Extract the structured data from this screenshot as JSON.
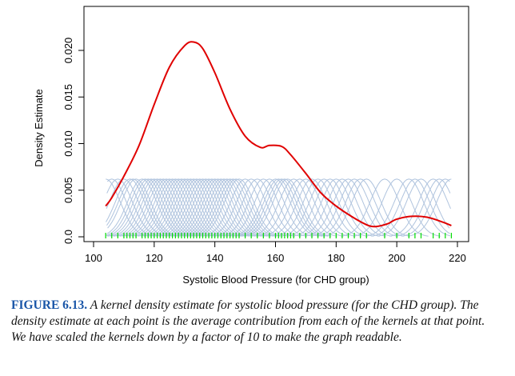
{
  "chart_data": {
    "type": "line",
    "title": "",
    "xlabel": "Systolic Blood Pressure (for CHD group)",
    "ylabel": "Density Estimate",
    "xlim": [
      100,
      220
    ],
    "ylim": [
      0,
      0.0225
    ],
    "x_ticks": [
      "100",
      "120",
      "140",
      "160",
      "180",
      "200",
      "220"
    ],
    "y_ticks": [
      "0.0",
      "0.005",
      "0.010",
      "0.015",
      "0.020"
    ],
    "series": [
      {
        "role": "density estimate",
        "color": "#e00000",
        "x": [
          104,
          106,
          110,
          115,
          120,
          125,
          130,
          133,
          136,
          140,
          145,
          150,
          155,
          158,
          162,
          165,
          170,
          175,
          180,
          185,
          190,
          193,
          197,
          200,
          205,
          210,
          215,
          218
        ],
        "y": [
          0.0033,
          0.0042,
          0.0065,
          0.0098,
          0.0142,
          0.0182,
          0.0205,
          0.0209,
          0.0202,
          0.0176,
          0.0137,
          0.0108,
          0.0096,
          0.0098,
          0.0097,
          0.0088,
          0.0068,
          0.0047,
          0.0033,
          0.0022,
          0.0013,
          0.0011,
          0.0014,
          0.0019,
          0.0022,
          0.0021,
          0.0016,
          0.0012
        ]
      }
    ],
    "kernels": {
      "color": "#b0c4de",
      "peak_height": 0.0062,
      "bandwidth": 4.8,
      "centers": [
        104,
        106,
        108,
        110,
        112,
        113,
        114,
        116,
        117,
        118,
        119,
        120,
        121,
        122,
        123,
        124,
        125,
        126,
        127,
        128,
        129,
        130,
        131,
        132,
        133,
        134,
        135,
        136,
        137,
        138,
        139,
        140,
        141,
        142,
        143,
        144,
        145,
        146,
        147,
        148,
        150,
        152,
        154,
        156,
        158,
        160,
        161,
        162,
        163,
        164,
        166,
        168,
        170,
        172,
        174,
        176,
        178,
        180,
        182,
        184,
        186,
        188,
        190,
        196,
        200,
        204,
        206,
        208,
        212,
        214,
        216,
        218
      ]
    },
    "rug": {
      "color": "#00dd00",
      "values": [
        104,
        106,
        108,
        110,
        111,
        112,
        113,
        114,
        116,
        117,
        118,
        119,
        120,
        121,
        122,
        123,
        124,
        125,
        126,
        127,
        128,
        129,
        130,
        131,
        132,
        133,
        134,
        135,
        136,
        137,
        138,
        139,
        140,
        141,
        142,
        143,
        144,
        145,
        146,
        147,
        148,
        150,
        152,
        154,
        156,
        158,
        160,
        161,
        162,
        163,
        164,
        165,
        166,
        168,
        170,
        172,
        174,
        176,
        178,
        180,
        182,
        184,
        186,
        188,
        190,
        196,
        200,
        204,
        206,
        208,
        212,
        214,
        216,
        218
      ]
    }
  },
  "caption": {
    "label": "FIGURE 6.13.",
    "text": " A kernel density estimate for systolic blood pressure (for the CHD group). The density estimate at each point is the average contribution from each of the kernels at that point. We have scaled the kernels down by a factor of 10 to make the graph readable."
  }
}
